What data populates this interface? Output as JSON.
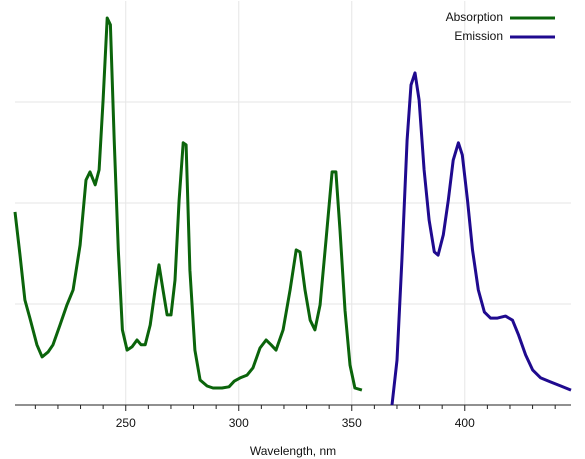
{
  "chart_data": {
    "type": "line",
    "xlabel": "Wavelength, nm",
    "xlim": [
      201,
      447
    ],
    "xticks": [
      250,
      300,
      350,
      400
    ],
    "xminor_ticks": [
      210,
      220,
      230,
      240,
      260,
      270,
      280,
      290,
      310,
      320,
      330,
      340,
      360,
      370,
      380,
      390,
      410,
      420,
      430,
      440
    ],
    "ylim": [
      0,
      1
    ],
    "yticks": [
      0.25,
      0.5,
      0.75
    ],
    "grid": true,
    "legend": "upper right",
    "series": [
      {
        "name": "Absorption",
        "color": "#0b640b",
        "x": [
          201,
          203.2,
          205.4,
          207.6,
          210.7,
          213,
          215.6,
          217.8,
          220.9,
          224,
          226.7,
          229.8,
          232.4,
          234.2,
          236.5,
          238.2,
          240,
          241.8,
          243.2,
          244.9,
          246.7,
          248.5,
          250.6,
          252.8,
          255,
          256.8,
          258.6,
          260.8,
          263,
          264.7,
          266.5,
          268.3,
          270,
          271.8,
          273.6,
          275.4,
          276.7,
          278.4,
          280.6,
          282.9,
          286,
          288.6,
          292.6,
          295.7,
          298,
          300.6,
          303.7,
          306.3,
          309.4,
          312.1,
          314.3,
          316.5,
          319.6,
          322.7,
          325.4,
          327.1,
          329.3,
          331.6,
          333.7,
          336,
          338.6,
          341.3,
          343,
          344.8,
          347,
          349.2,
          351.4,
          354.5
        ],
        "values": [
          0.478,
          0.371,
          0.26,
          0.215,
          0.149,
          0.119,
          0.131,
          0.149,
          0.198,
          0.248,
          0.285,
          0.396,
          0.557,
          0.577,
          0.545,
          0.582,
          0.755,
          0.958,
          0.941,
          0.656,
          0.384,
          0.186,
          0.136,
          0.144,
          0.161,
          0.149,
          0.149,
          0.198,
          0.285,
          0.347,
          0.285,
          0.223,
          0.223,
          0.309,
          0.507,
          0.649,
          0.644,
          0.334,
          0.136,
          0.062,
          0.047,
          0.042,
          0.042,
          0.045,
          0.059,
          0.067,
          0.074,
          0.092,
          0.141,
          0.161,
          0.149,
          0.136,
          0.186,
          0.285,
          0.384,
          0.379,
          0.285,
          0.21,
          0.186,
          0.248,
          0.408,
          0.577,
          0.577,
          0.433,
          0.235,
          0.099,
          0.042,
          0.037
        ]
      },
      {
        "name": "Emission",
        "color": "#1f0a8f",
        "x": [
          367.8,
          370,
          372.2,
          374.5,
          376.2,
          378,
          379.8,
          382,
          384.2,
          386.5,
          388.2,
          390.5,
          392.7,
          394.9,
          397.2,
          398.9,
          401.2,
          403.4,
          406,
          408.7,
          411.4,
          414.5,
          418,
          421.1,
          423.8,
          426.9,
          430,
          433.6,
          438,
          442.5,
          447
        ],
        "values": [
          0,
          0.111,
          0.359,
          0.656,
          0.792,
          0.822,
          0.755,
          0.582,
          0.458,
          0.379,
          0.371,
          0.421,
          0.507,
          0.606,
          0.649,
          0.619,
          0.507,
          0.384,
          0.285,
          0.23,
          0.215,
          0.215,
          0.22,
          0.21,
          0.173,
          0.124,
          0.087,
          0.067,
          0.057,
          0.047,
          0.037
        ]
      }
    ]
  }
}
